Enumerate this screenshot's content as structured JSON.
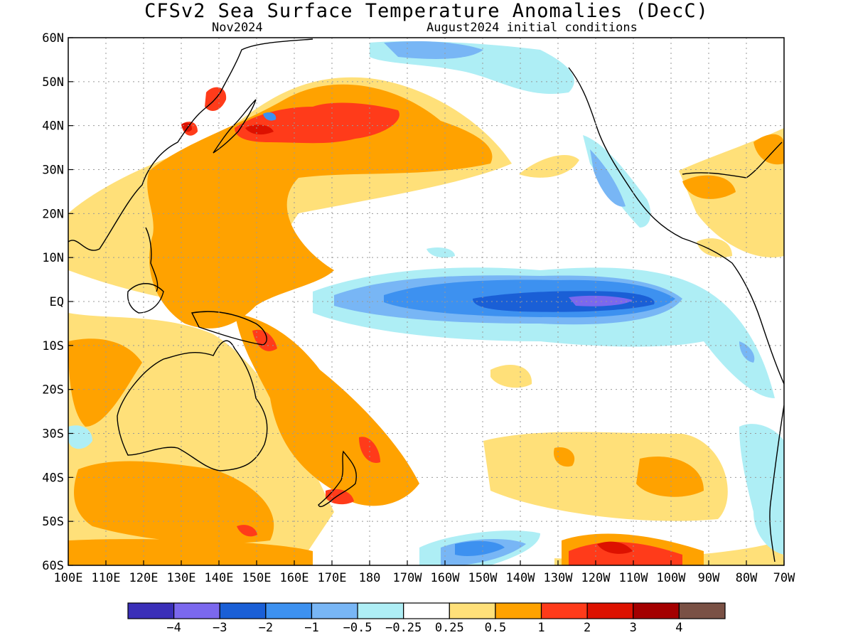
{
  "header": {
    "title": "CFSv2 Sea Surface Temperature Anomalies (DecC)",
    "valid_month": "Nov2024",
    "initial_conditions": "August2024 initial conditions"
  },
  "map": {
    "lon_range": [
      100,
      290
    ],
    "lat_range": [
      -60,
      60
    ],
    "grid": true,
    "y_ticks": [
      "60N",
      "50N",
      "40N",
      "30N",
      "20N",
      "10N",
      "EQ",
      "10S",
      "20S",
      "30S",
      "40S",
      "50S",
      "60S"
    ],
    "x_ticks": [
      "100E",
      "110E",
      "120E",
      "130E",
      "140E",
      "150E",
      "160E",
      "170E",
      "180",
      "170W",
      "160W",
      "150W",
      "140W",
      "130W",
      "120W",
      "110W",
      "100W",
      "90W",
      "80W",
      "70W"
    ],
    "colors": {
      "land_outline": "#000000",
      "ocean": "#ffffff",
      "grid": "#999999"
    }
  },
  "colorbar": {
    "labels": [
      "−4",
      "−3",
      "−2",
      "−1",
      "−0.5",
      "−0.25",
      "0.25",
      "0.5",
      "1",
      "2",
      "3",
      "4"
    ],
    "colors": [
      "#3a2fb8",
      "#7b68ee",
      "#1a5fd6",
      "#3d91f0",
      "#78b6f5",
      "#aeeef5",
      "#ffffff",
      "#ffe079",
      "#ffa200",
      "#ff3b1a",
      "#dd1100",
      "#a40000",
      "#7a5145"
    ]
  }
}
